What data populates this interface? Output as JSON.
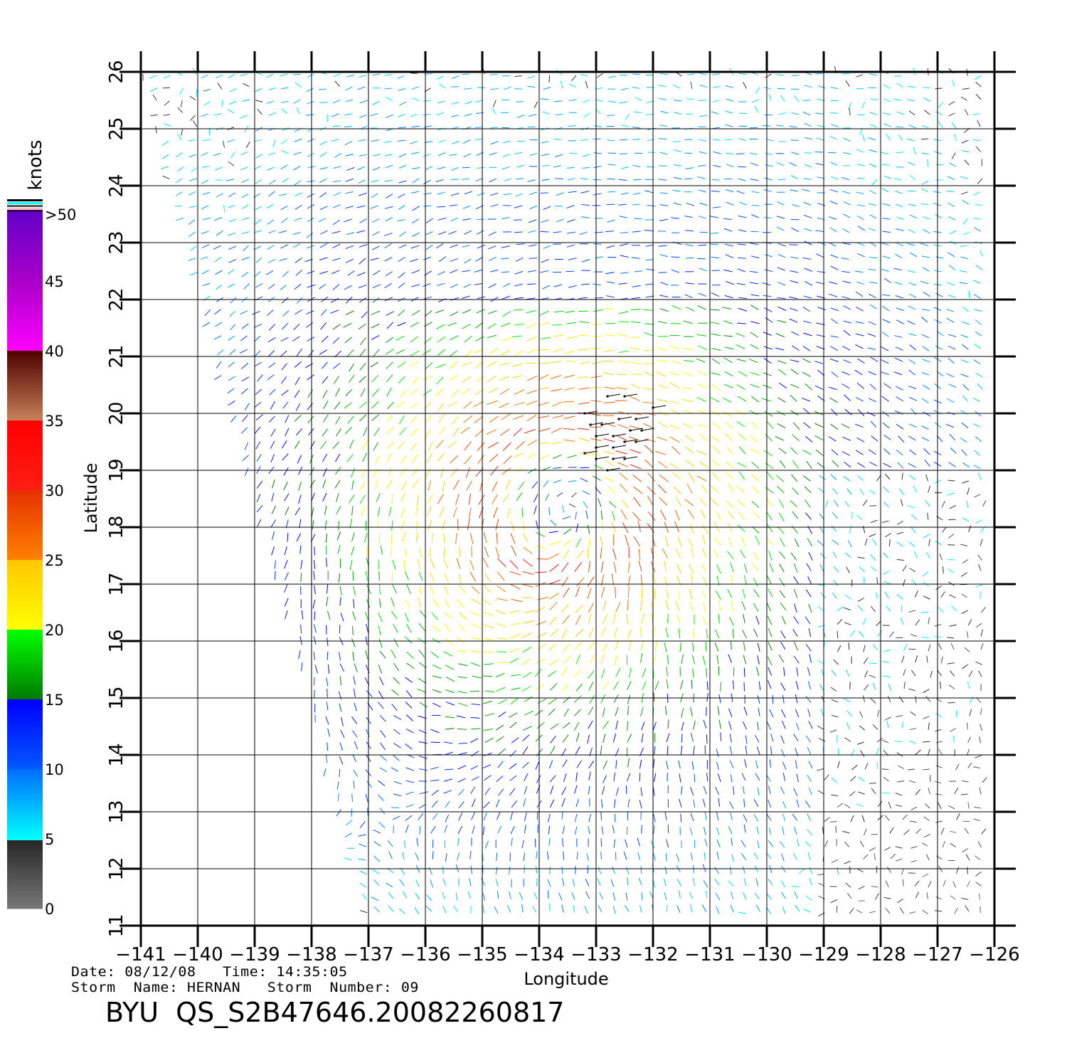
{
  "chart_data": {
    "type": "wind-vector-map",
    "xlabel": "Longitude",
    "ylabel": "Latitude",
    "xlim": [
      -141,
      -126
    ],
    "ylim": [
      11,
      26
    ],
    "x_ticks": [
      "-141",
      "-140",
      "-139",
      "-138",
      "-137",
      "-136",
      "-135",
      "-134",
      "-133",
      "-132",
      "-131",
      "-130",
      "-129",
      "-128",
      "-127",
      "-126"
    ],
    "y_ticks": [
      "11",
      "12",
      "13",
      "14",
      "15",
      "16",
      "17",
      "18",
      "19",
      "20",
      "21",
      "22",
      "23",
      "24",
      "25",
      "26"
    ],
    "grid": true,
    "storm_center": {
      "lon": -133.5,
      "lat": 18.5
    },
    "peak_speed_knots": 30,
    "swath_left_edge": [
      [
        -141,
        26
      ],
      [
        -137,
        11
      ]
    ],
    "rain_flag_points": [
      [
        -132.8,
        20.3
      ],
      [
        -132.5,
        20.3
      ],
      [
        -132.0,
        20.1
      ],
      [
        -133.2,
        20.0
      ],
      [
        -133.1,
        19.8
      ],
      [
        -132.9,
        19.8
      ],
      [
        -132.6,
        19.9
      ],
      [
        -132.3,
        19.9
      ],
      [
        -133.0,
        19.6
      ],
      [
        -132.7,
        19.6
      ],
      [
        -132.4,
        19.7
      ],
      [
        -132.2,
        19.7
      ],
      [
        -133.2,
        19.3
      ],
      [
        -133.0,
        19.4
      ],
      [
        -132.7,
        19.4
      ],
      [
        -132.5,
        19.5
      ],
      [
        -132.3,
        19.5
      ],
      [
        -133.0,
        19.2
      ],
      [
        -132.7,
        19.2
      ],
      [
        -132.5,
        19.2
      ],
      [
        -132.8,
        19.0
      ]
    ],
    "colorbar": {
      "label": "knots",
      "tick_labels": [
        ">50",
        "45",
        "40",
        "35",
        "30",
        "25",
        "20",
        "15",
        "10",
        "5",
        "0"
      ],
      "colors": {
        "0": "#808080",
        "5": "#00ffff",
        "10": "#0060ff",
        "15": "#0000ff",
        "20": "#00ff00",
        "25": "#ffd000",
        "30": "#ff5000",
        "35": "#ff1010",
        "40": "#500000",
        "45": "#ff00ff",
        "50": "#6000c0"
      }
    }
  },
  "info": {
    "date_line": "Date: 08/12/08   Time: 14:35:05",
    "storm_line": "Storm  Name: HERNAN   Storm  Number: 09",
    "title": "BYU  QS_S2B47646.20082260817"
  }
}
